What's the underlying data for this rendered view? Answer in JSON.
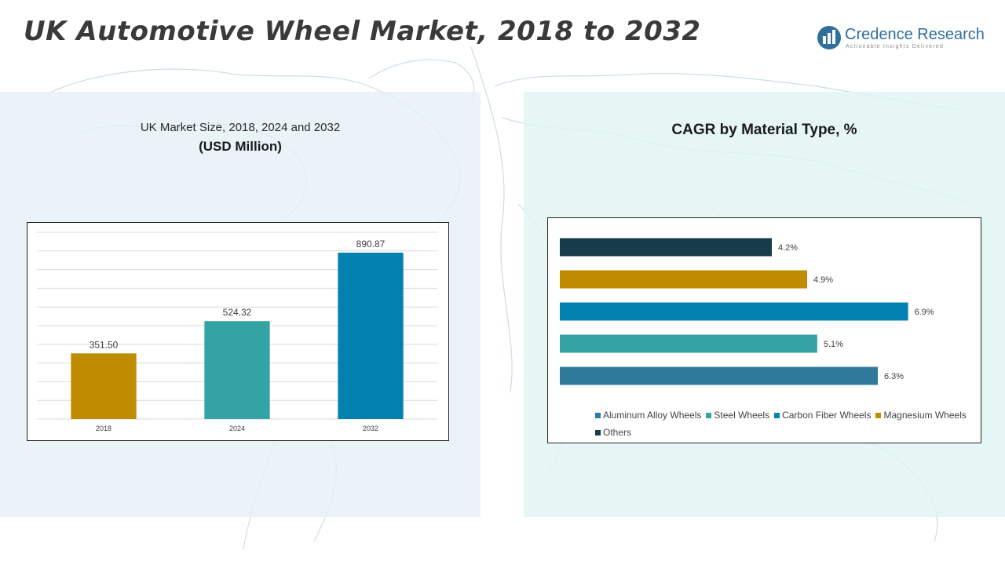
{
  "header": {
    "title": "UK Automotive Wheel Market, 2018 to 2032",
    "brand_name": "Credence Research",
    "brand_tagline": "Actionable Insights Delivered",
    "brand_color": "#2f6f9e"
  },
  "left_panel": {
    "title": "UK Market Size, 2018, 2024 and 2032",
    "subtitle": "(USD Million)"
  },
  "right_panel": {
    "title": "CAGR by Material Type, %"
  },
  "chart_data": [
    {
      "type": "bar",
      "title": "UK Market Size, 2018, 2024 and 2032",
      "subtitle": "(USD Million)",
      "categories": [
        "2018",
        "2024",
        "2032"
      ],
      "values": [
        351.5,
        524.32,
        890.87
      ],
      "value_labels": [
        "351.50",
        "524.32",
        "890.87"
      ],
      "colors": [
        "#bf8c00",
        "#33a3a3",
        "#0081b0"
      ],
      "ylim": [
        0,
        1000
      ],
      "grid": true
    },
    {
      "type": "bar",
      "orientation": "horizontal",
      "title": "CAGR by Material Type, %",
      "categories": [
        "Others",
        "Magnesium Wheels",
        "Carbon Fiber Wheels",
        "Steel Wheels",
        "Aluminum Alloy Wheels"
      ],
      "values": [
        4.2,
        4.9,
        6.9,
        5.1,
        6.3
      ],
      "value_labels": [
        "4.2%",
        "4.9%",
        "6.9%",
        "5.1%",
        "6.3%"
      ],
      "colors": [
        "#173b4a",
        "#bf8c00",
        "#0081b0",
        "#33a3a3",
        "#2f7a9b"
      ],
      "xlim": [
        0,
        7
      ],
      "legend_position": "bottom",
      "legend": [
        {
          "label": "Aluminum Alloy Wheels",
          "color": "#2f7a9b"
        },
        {
          "label": "Steel Wheels",
          "color": "#33a3a3"
        },
        {
          "label": "Carbon Fiber Wheels",
          "color": "#0081b0"
        },
        {
          "label": "Magnesium Wheels",
          "color": "#bf8c00"
        },
        {
          "label": "Others",
          "color": "#173b4a"
        }
      ]
    }
  ]
}
